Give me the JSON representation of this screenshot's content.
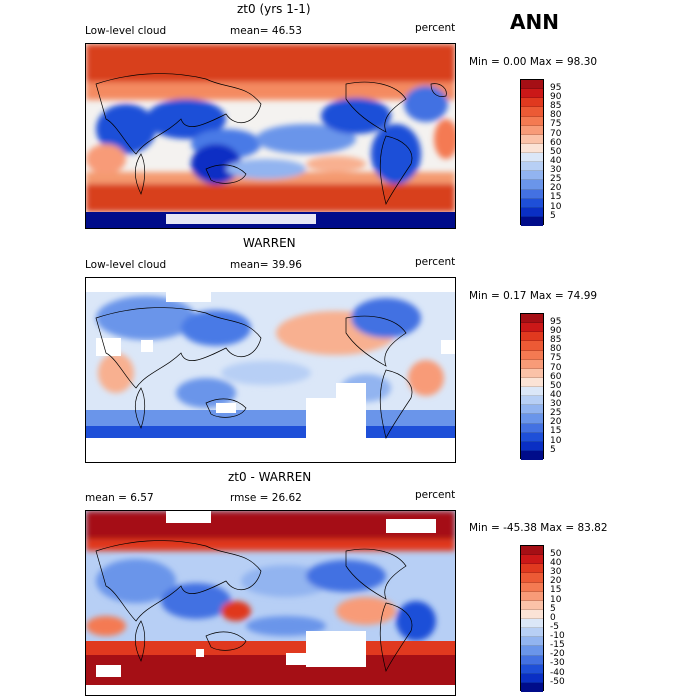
{
  "header": {
    "season": "ANN"
  },
  "panels": [
    {
      "title": "zt0 (yrs 1-1)",
      "left_label": "Low-level cloud",
      "mid_label": "mean=   46.53",
      "units": "percent",
      "minmax": "Min =    0.00 Max =   98.30",
      "colorbar": {
        "ticks": [
          "95",
          "90",
          "85",
          "80",
          "75",
          "70",
          "60",
          "50",
          "40",
          "30",
          "25",
          "20",
          "15",
          "10",
          "5"
        ],
        "colors": [
          "#a50f15",
          "#cb1818",
          "#e0391f",
          "#ec5a35",
          "#f47a52",
          "#f89b78",
          "#fbc2a8",
          "#fbe3d6",
          "#dbe7f8",
          "#b7cff5",
          "#92b4f0",
          "#6a95ea",
          "#4371e2",
          "#1e4fd8",
          "#0a2fc4",
          "#000c8a"
        ]
      }
    },
    {
      "title": "WARREN",
      "left_label": "Low-level cloud",
      "mid_label": "mean=   39.96",
      "units": "percent",
      "minmax": "Min =    0.17 Max =   74.99",
      "colorbar": {
        "ticks": [
          "95",
          "90",
          "85",
          "80",
          "75",
          "70",
          "60",
          "50",
          "40",
          "30",
          "25",
          "20",
          "15",
          "10",
          "5"
        ],
        "colors": [
          "#a50f15",
          "#cb1818",
          "#e0391f",
          "#ec5a35",
          "#f47a52",
          "#f89b78",
          "#fbc2a8",
          "#fbe3d6",
          "#dbe7f8",
          "#b7cff5",
          "#92b4f0",
          "#6a95ea",
          "#4371e2",
          "#1e4fd8",
          "#0a2fc4",
          "#000c8a"
        ]
      }
    },
    {
      "title": "zt0 - WARREN",
      "left_label": "mean =    6.57",
      "mid_label": "rmse =   26.62",
      "units": "percent",
      "minmax": "Min = -45.38 Max =   83.82",
      "colorbar": {
        "ticks": [
          "50",
          "40",
          "30",
          "20",
          "15",
          "10",
          "5",
          "0",
          "-5",
          "-10",
          "-15",
          "-20",
          "-30",
          "-40",
          "-50"
        ],
        "colors": [
          "#a50f15",
          "#cb1818",
          "#e0391f",
          "#ec5a35",
          "#f47a52",
          "#f89b78",
          "#fbc2a8",
          "#fbe3d6",
          "#dbe7f8",
          "#b7cff5",
          "#92b4f0",
          "#6a95ea",
          "#4371e2",
          "#1e4fd8",
          "#0a2fc4",
          "#000c8a"
        ]
      }
    }
  ]
}
